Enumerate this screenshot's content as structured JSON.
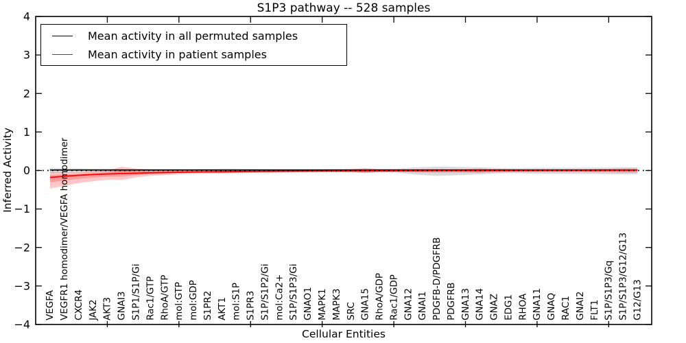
{
  "figure": {
    "title": "S1P3 pathway -- 528 samples",
    "xlabel": "Cellular Entities",
    "ylabel": "Inferred Activity"
  },
  "legend": {
    "entries": [
      {
        "label": "Mean activity in all permuted samples",
        "color": "#000000"
      },
      {
        "label": "Mean activity in patient samples",
        "color": "#ff0000"
      }
    ]
  },
  "axes": {
    "ylim": [
      -4,
      4
    ],
    "yticks": [
      {
        "value": 4,
        "label": "4"
      },
      {
        "value": 3,
        "label": "3"
      },
      {
        "value": 2,
        "label": "2"
      },
      {
        "value": 1,
        "label": "1"
      },
      {
        "value": 0,
        "label": "0"
      },
      {
        "value": -1,
        "label": "−1"
      },
      {
        "value": -2,
        "label": "−2"
      },
      {
        "value": -3,
        "label": "−3"
      },
      {
        "value": -4,
        "label": "−4"
      }
    ],
    "x_major_tick_positions": [
      5,
      10,
      15,
      20,
      25,
      30,
      35,
      40
    ]
  },
  "chart_data": {
    "type": "line",
    "title": "S1P3 pathway -- 528 samples",
    "xlabel": "Cellular Entities",
    "ylabel": "Inferred Activity",
    "ylim": [
      -4,
      4
    ],
    "grid": false,
    "legend_position": "upper left",
    "categories": [
      "VEGFA",
      "VEGFR1 homodimer/VEGFA homodimer",
      "CXCR4",
      "JAK2",
      "AKT3",
      "GNAI3",
      "S1P1/S1P/Gi",
      "Rac1/GTP",
      "RhoA/GTP",
      "mol:GTP",
      "mol:GDP",
      "S1PR2",
      "AKT1",
      "mol:S1P",
      "S1PR3",
      "S1P/S1P2/Gi",
      "mol:Ca2+",
      "S1P/S1P3/Gi",
      "GNAO1",
      "MAPK1",
      "MAPK3",
      "SRC",
      "GNA15",
      "RhoA/GDP",
      "Rac1/GDP",
      "GNA12",
      "GNAI1",
      "PDGFB-D/PDGFRB",
      "PDGFRB",
      "GNA13",
      "GNA14",
      "GNAZ",
      "EDG1",
      "RHOA",
      "GNA11",
      "GNAQ",
      "RAC1",
      "GNAI2",
      "FLT1",
      "S1P/S1P3/Gq",
      "S1P/S1P3/G12/G13",
      "G12/G13"
    ],
    "series": {
      "permuted": {
        "name": "Mean activity in all permuted samples",
        "color": "#000000",
        "band_color": "rgba(0,0,0,0.14)",
        "values": [
          0.012,
          0.012,
          0.012,
          0.012,
          0.012,
          0.012,
          0.012,
          0.012,
          0.012,
          0.012,
          0.012,
          0.012,
          0.012,
          0.012,
          0.012,
          0.012,
          0.012,
          0.012,
          0.012,
          0.012,
          0.012,
          0.012,
          0.012,
          0.012,
          0.012,
          0.012,
          0.012,
          0.012,
          0.012,
          0.012,
          0.012,
          0.012,
          0.012,
          0.012,
          0.012,
          0.012,
          0.012,
          0.012,
          0.012,
          0.012,
          0.012,
          0.012
        ],
        "band_upper": [
          0.07,
          0.06,
          0.055,
          0.05,
          0.05,
          0.045,
          0.04,
          0.04,
          0.04,
          0.04,
          0.04,
          0.045,
          0.05,
          0.05,
          0.045,
          0.04,
          0.04,
          0.04,
          0.04,
          0.04,
          0.045,
          0.05,
          0.055,
          0.05,
          0.05,
          0.07,
          0.09,
          0.1,
          0.095,
          0.09,
          0.08,
          0.07,
          0.06,
          0.065,
          0.07,
          0.072,
          0.072,
          0.072,
          0.072,
          0.075,
          0.08,
          0.08
        ],
        "band_lower": [
          -0.07,
          -0.06,
          -0.055,
          -0.05,
          -0.05,
          -0.045,
          -0.04,
          -0.04,
          -0.04,
          -0.04,
          -0.04,
          -0.05,
          -0.06,
          -0.055,
          -0.05,
          -0.045,
          -0.04,
          -0.04,
          -0.04,
          -0.04,
          -0.045,
          -0.05,
          -0.06,
          -0.05,
          -0.05,
          -0.09,
          -0.12,
          -0.14,
          -0.13,
          -0.115,
          -0.1,
          -0.08,
          -0.07,
          -0.075,
          -0.085,
          -0.09,
          -0.09,
          -0.09,
          -0.09,
          -0.095,
          -0.1,
          -0.1
        ]
      },
      "patient": {
        "name": "Mean activity in patient samples",
        "color": "#ff0000",
        "band_color": "rgba(255,0,0,0.22)",
        "values": [
          -0.18,
          -0.15,
          -0.125,
          -0.105,
          -0.09,
          -0.08,
          -0.07,
          -0.06,
          -0.052,
          -0.046,
          -0.04,
          -0.036,
          -0.032,
          -0.028,
          -0.025,
          -0.022,
          -0.02,
          -0.018,
          -0.016,
          -0.014,
          -0.012,
          -0.011,
          -0.01,
          -0.009,
          -0.008,
          -0.007,
          -0.006,
          -0.005,
          -0.004,
          -0.004,
          -0.003,
          -0.002,
          -0.002,
          -0.001,
          -0.001,
          0,
          0,
          0.001,
          0.002,
          0.004,
          0.006,
          0.008
        ],
        "band_upper": [
          -0.04,
          -0.05,
          -0.04,
          -0.02,
          0,
          0.1,
          0.05,
          0.025,
          0.015,
          0.012,
          0.012,
          0.015,
          0.018,
          0.02,
          0.02,
          0.02,
          0.02,
          0.02,
          0.02,
          0.02,
          0.022,
          0.03,
          0.06,
          0.03,
          0.028,
          0.03,
          0.035,
          0.04,
          0.038,
          0.038,
          0.055,
          0.035,
          0.03,
          0.028,
          0.028,
          0.028,
          0.028,
          0.03,
          0.035,
          0.045,
          0.055,
          0.055
        ],
        "band_lower": [
          -0.47,
          -0.4,
          -0.33,
          -0.28,
          -0.24,
          -0.25,
          -0.18,
          -0.14,
          -0.12,
          -0.1,
          -0.09,
          -0.08,
          -0.075,
          -0.07,
          -0.065,
          -0.06,
          -0.055,
          -0.05,
          -0.048,
          -0.045,
          -0.045,
          -0.05,
          -0.07,
          -0.05,
          -0.045,
          -0.05,
          -0.055,
          -0.06,
          -0.055,
          -0.055,
          -0.065,
          -0.05,
          -0.045,
          -0.04,
          -0.04,
          -0.04,
          -0.04,
          -0.04,
          -0.045,
          -0.05,
          -0.06,
          -0.06
        ]
      }
    },
    "zero_line": {
      "value": 0,
      "style": "dotted",
      "color": "#000000"
    }
  }
}
